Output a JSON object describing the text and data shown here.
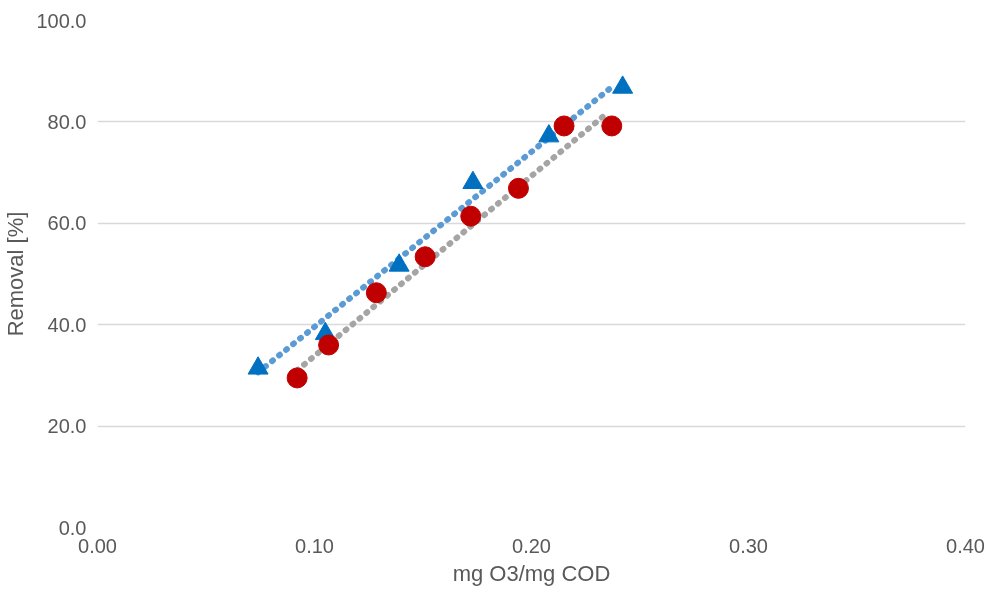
{
  "chart_data": {
    "type": "scatter",
    "xlabel": "mg O3/mg COD",
    "ylabel": "Removal [%]",
    "xlim": [
      0,
      0.4
    ],
    "ylim": [
      0,
      100
    ],
    "xticks": [
      {
        "value": 0,
        "label": "0.00"
      },
      {
        "value": 0.1,
        "label": "0.10"
      },
      {
        "value": 0.2,
        "label": "0.20"
      },
      {
        "value": 0.3,
        "label": "0.30"
      },
      {
        "value": 0.4,
        "label": "0.40"
      }
    ],
    "yticks": [
      {
        "value": 0,
        "label": "0.0"
      },
      {
        "value": 20,
        "label": "20.0"
      },
      {
        "value": 40,
        "label": "40.0"
      },
      {
        "value": 60,
        "label": "60.0"
      },
      {
        "value": 80,
        "label": "80.0"
      },
      {
        "value": 100,
        "label": "100.0"
      }
    ],
    "grid": "y",
    "series": [
      {
        "marker": "triangle",
        "color": "#0070c0",
        "x": [
          0.074,
          0.105,
          0.139,
          0.173,
          0.208,
          0.242
        ],
        "values": [
          31.4,
          38.2,
          51.7,
          68.0,
          77.2,
          86.8
        ]
      },
      {
        "marker": "circle",
        "color": "#c00000",
        "x": [
          0.092,
          0.1065,
          0.1285,
          0.151,
          0.172,
          0.194,
          0.215,
          0.237
        ],
        "values": [
          29.5,
          36.0,
          46.3,
          53.4,
          61.4,
          66.9,
          79.2,
          79.2
        ]
      },
      {
        "type": "line",
        "marker": "none",
        "line_style": "dotted",
        "color": "#5b9bd5",
        "x": [
          0.074,
          0.2385
        ],
        "values": [
          30.6,
          87.4
        ]
      },
      {
        "type": "line",
        "marker": "none",
        "line_style": "dotted",
        "color": "#a5a5a5",
        "x": [
          0.092,
          0.2345
        ],
        "values": [
          31.0,
          81.6
        ]
      }
    ]
  }
}
